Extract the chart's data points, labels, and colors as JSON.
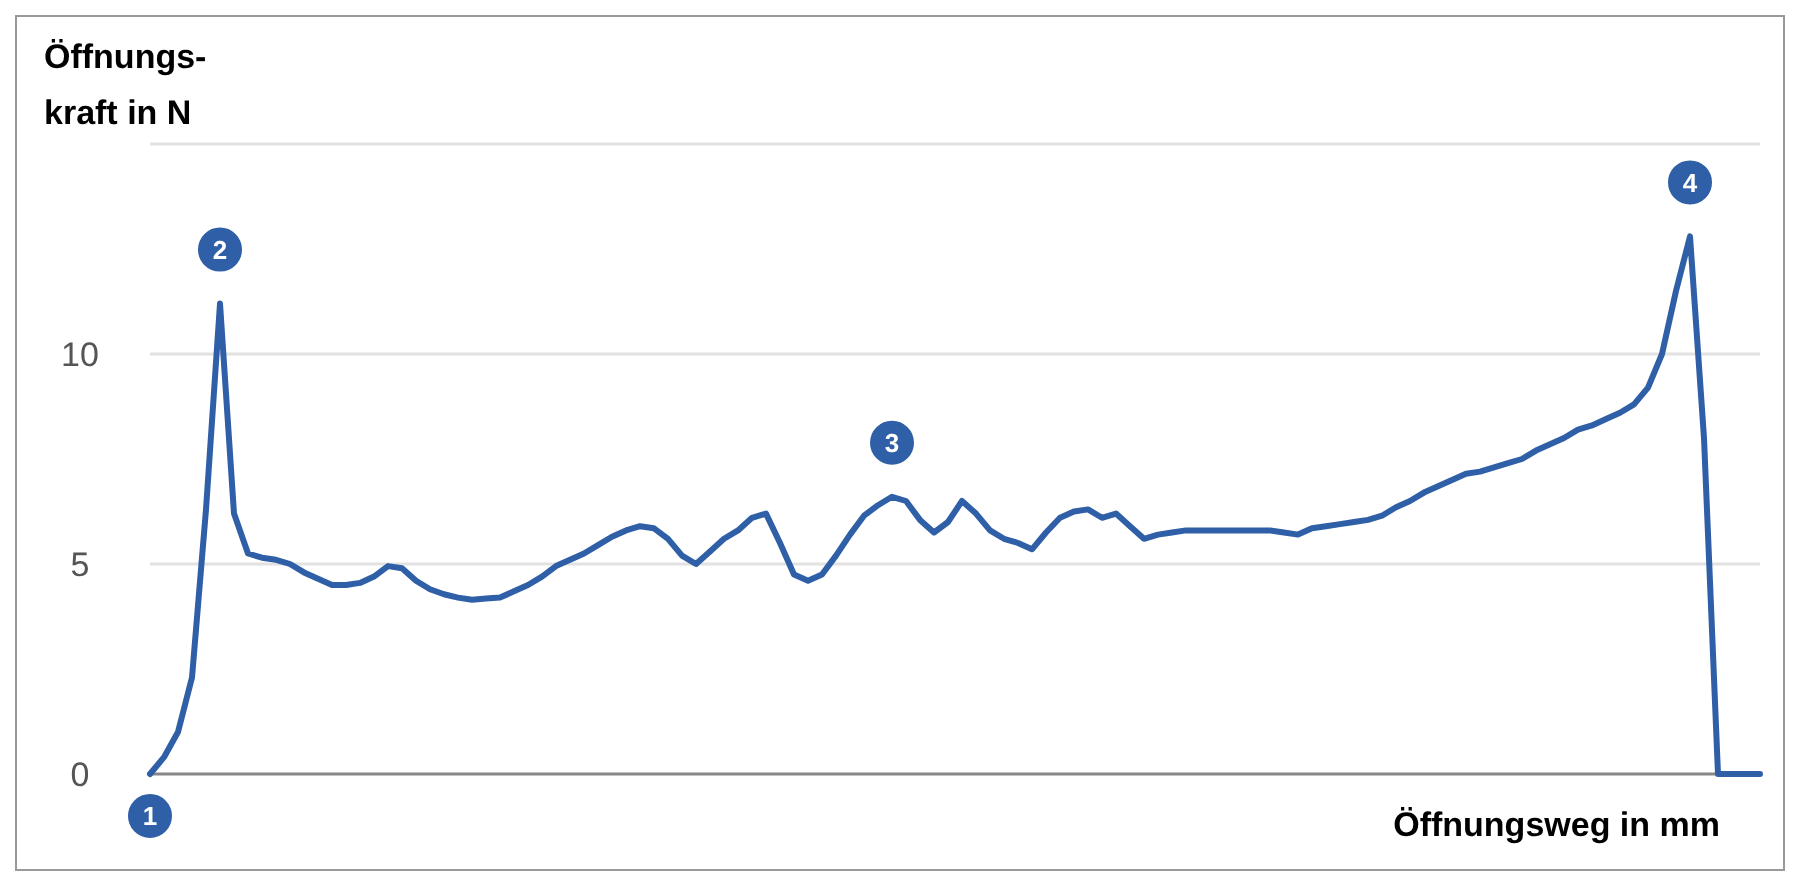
{
  "chart_data": {
    "type": "line",
    "ylabel": "Öffnungs-\nkraft in N",
    "xlabel": "Öffnungsweg in mm",
    "categories": [
      null,
      null,
      null,
      null,
      null,
      null,
      null,
      null,
      null,
      null,
      null,
      null,
      null,
      null,
      null,
      null,
      null,
      null,
      null,
      null,
      null,
      null,
      null,
      null,
      null,
      null,
      null,
      null,
      null,
      null,
      null,
      null,
      null,
      null,
      null,
      null,
      null,
      null,
      null,
      null,
      null,
      null,
      null,
      null,
      null,
      null,
      null,
      null,
      null,
      null,
      null,
      null,
      null,
      null,
      null,
      null,
      null,
      null,
      null,
      null,
      null,
      null,
      null,
      null,
      null,
      null,
      null,
      null,
      null,
      null,
      null,
      null,
      null,
      null,
      null,
      null,
      null,
      null,
      null,
      null,
      null,
      null,
      null,
      null,
      null,
      null,
      null,
      null,
      null,
      null,
      null,
      null,
      null,
      null,
      null,
      null,
      null,
      null,
      null,
      null,
      null,
      null,
      null,
      null,
      null,
      null,
      null,
      null,
      null,
      null,
      null,
      null,
      null,
      null,
      null,
      null
    ],
    "series": [
      {
        "color": "#2f5fa7",
        "values": [
          0,
          0.4,
          1.0,
          2.3,
          6.3,
          11.2,
          6.2,
          5.25,
          5.15,
          5.1,
          5.0,
          4.8,
          4.65,
          4.5,
          4.5,
          4.55,
          4.7,
          4.95,
          4.9,
          4.6,
          4.4,
          4.28,
          4.2,
          4.15,
          4.18,
          4.2,
          4.35,
          4.5,
          4.7,
          4.95,
          5.1,
          5.25,
          5.45,
          5.65,
          5.8,
          5.9,
          5.85,
          5.6,
          5.2,
          5.0,
          5.3,
          5.6,
          5.8,
          6.1,
          6.2,
          5.5,
          4.75,
          4.6,
          4.75,
          5.2,
          5.7,
          6.15,
          6.4,
          6.6,
          6.5,
          6.05,
          5.75,
          6.0,
          6.5,
          6.2,
          5.8,
          5.6,
          5.5,
          5.35,
          5.75,
          6.1,
          6.25,
          6.3,
          6.1,
          6.2,
          5.9,
          5.6,
          5.7,
          5.75,
          5.8,
          5.8,
          5.8,
          5.8,
          5.8,
          5.8,
          5.8,
          5.75,
          5.7,
          5.85,
          5.9,
          5.95,
          6.0,
          6.05,
          6.15,
          6.35,
          6.5,
          6.7,
          6.85,
          7.0,
          7.15,
          7.2,
          7.3,
          7.4,
          7.5,
          7.7,
          7.85,
          8.0,
          8.2,
          8.3,
          8.45,
          8.6,
          8.8,
          9.2,
          10.0,
          11.5,
          12.8,
          8.0,
          0,
          0,
          0,
          0
        ]
      }
    ],
    "ylim": [
      0,
      15
    ],
    "yticks": [
      0,
      5,
      10,
      {
        "value": 15,
        "label": null
      }
    ],
    "grid": "y",
    "tick_labels": "y",
    "marker": "none",
    "line_style": "solid",
    "annotations": [
      {
        "text": "1",
        "y": 0
      },
      {
        "text": "2",
        "y": 11.2
      },
      {
        "text": "3",
        "y": 6.6
      },
      {
        "text": "4",
        "y": 12.8
      }
    ]
  }
}
